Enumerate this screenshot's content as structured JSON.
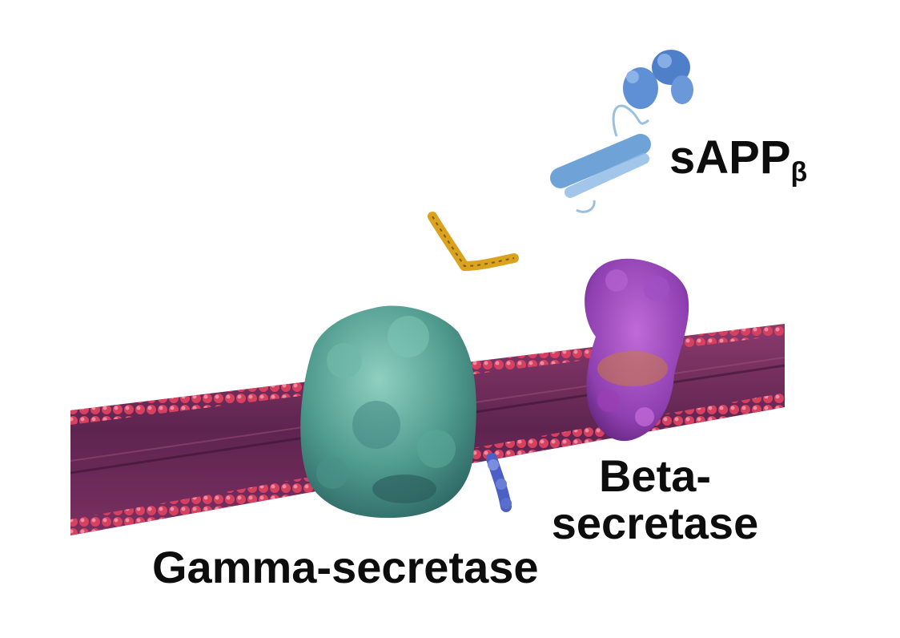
{
  "labels": {
    "sapp_main": "sAPP",
    "sapp_sub": "β",
    "beta_line1": "Beta-",
    "beta_line2": "secretase",
    "gamma": "Gamma-secretase"
  },
  "colors": {
    "membrane_body": "#6e2a5c",
    "membrane_edge": "#c8345a",
    "gamma_protein": "#4f9a8e",
    "beta_protein": "#8e3fb0",
    "sapp_protein": "#6fa3d8",
    "abeta_fragment": "#d9a21f",
    "apb_fragment": "#4b5fc4"
  }
}
